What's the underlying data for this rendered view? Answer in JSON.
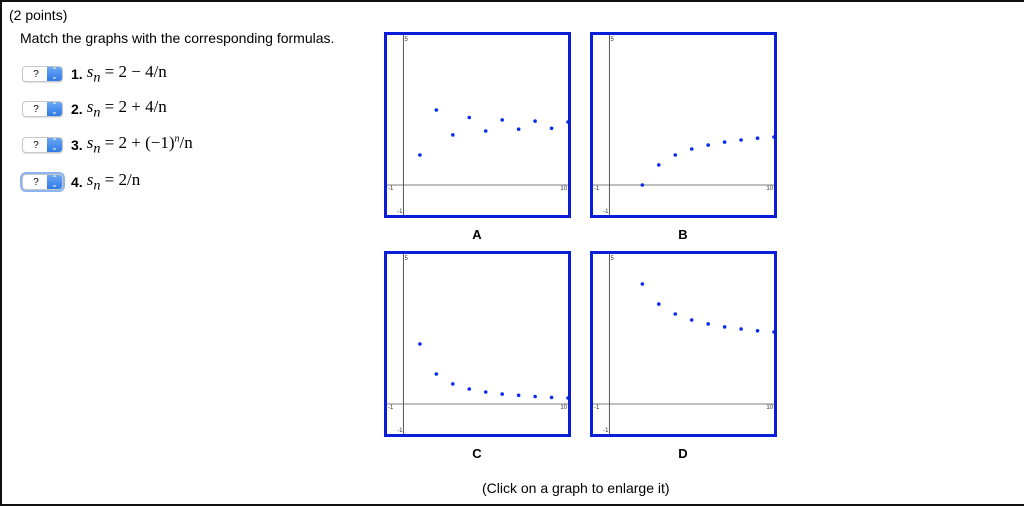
{
  "question": {
    "points": "(2 points)",
    "instruction": "Match the graphs with the corresponding formulas."
  },
  "formulas": [
    {
      "number": "1.",
      "select_value": "?",
      "lhs": "s",
      "sub": "n",
      "rhs": " = 2 − 4/n"
    },
    {
      "number": "2.",
      "select_value": "?",
      "lhs": "s",
      "sub": "n",
      "rhs": " = 2 + 4/n"
    },
    {
      "number": "3.",
      "select_value": "?",
      "lhs": "s",
      "sub": "n",
      "rhs": " = 2 + (−1)",
      "sup": "n",
      "rhs2": "/n"
    },
    {
      "number": "4.",
      "select_value": "?",
      "lhs": "s",
      "sub": "n",
      "rhs": " = 2/n"
    }
  ],
  "graphs": [
    {
      "label": "A"
    },
    {
      "label": "B"
    },
    {
      "label": "C"
    },
    {
      "label": "D"
    }
  ],
  "axis_labels": {
    "xmin": "-1",
    "xmax": "10",
    "ymin": "-1",
    "ymax": "5"
  },
  "footer": {
    "hint": "(Click on a graph to enlarge it)"
  },
  "colors": {
    "graph_border": "#0a1ed8",
    "point": "#0a2cf0",
    "axis": "#555555"
  },
  "chart_data": [
    {
      "type": "scatter",
      "title": "A",
      "xlim": [
        -1,
        10
      ],
      "ylim": [
        -1,
        5
      ],
      "x": [
        1,
        2,
        3,
        4,
        5,
        6,
        7,
        8,
        9,
        10
      ],
      "values": [
        1,
        2.5,
        1.67,
        2.25,
        1.8,
        2.17,
        1.86,
        2.13,
        1.89,
        2.1
      ]
    },
    {
      "type": "scatter",
      "title": "B",
      "xlim": [
        -1,
        10
      ],
      "ylim": [
        -1,
        5
      ],
      "x": [
        1,
        2,
        3,
        4,
        5,
        6,
        7,
        8,
        9,
        10
      ],
      "values": [
        -2,
        0,
        0.67,
        1,
        1.2,
        1.33,
        1.43,
        1.5,
        1.56,
        1.6
      ]
    },
    {
      "type": "scatter",
      "title": "C",
      "xlim": [
        -1,
        10
      ],
      "ylim": [
        -1,
        5
      ],
      "x": [
        1,
        2,
        3,
        4,
        5,
        6,
        7,
        8,
        9,
        10
      ],
      "values": [
        2,
        1,
        0.67,
        0.5,
        0.4,
        0.33,
        0.29,
        0.25,
        0.22,
        0.2
      ]
    },
    {
      "type": "scatter",
      "title": "D",
      "xlim": [
        -1,
        10
      ],
      "ylim": [
        -1,
        5
      ],
      "x": [
        1,
        2,
        3,
        4,
        5,
        6,
        7,
        8,
        9,
        10
      ],
      "values": [
        6,
        4,
        3.33,
        3,
        2.8,
        2.67,
        2.57,
        2.5,
        2.44,
        2.4
      ]
    }
  ]
}
